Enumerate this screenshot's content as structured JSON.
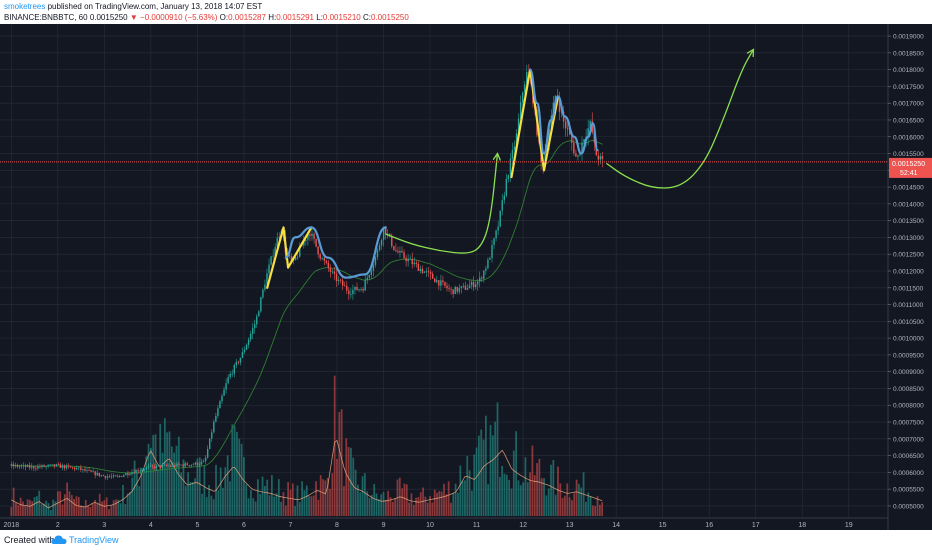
{
  "header": {
    "author": "smoketrees",
    "published_text": "published on TradingView.com, January 13, 2018 14:07 EST",
    "symbol_line": "BINANCE:BNBBTC, 60",
    "last_value": "0.0015250",
    "change_text": "−0.0000910 (−5.63%)",
    "ohlc": [
      {
        "label": "O:",
        "value": "0.0015287"
      },
      {
        "label": "H:",
        "value": "0.0015291"
      },
      {
        "label": "L:",
        "value": "0.0015210"
      },
      {
        "label": "C:",
        "value": "0.0015250"
      }
    ]
  },
  "price_tag": {
    "price": "0.0015250",
    "countdown": "52:41"
  },
  "footer": {
    "created_with": "Created with",
    "brand": "TradingView"
  },
  "colors": {
    "background": "#131722",
    "grid": "#2a2e39",
    "candle_up": "#26a69a",
    "candle_down": "#ef5350",
    "projection": "#8be04e",
    "pattern_yellow": "#f5e042",
    "pattern_blue": "#5b9bd5",
    "price_line": "#ef5350",
    "volume_ma": "#e8a47c",
    "ema": "#2e7d32"
  },
  "chart_data": {
    "type": "candlestick",
    "symbol": "BINANCE:BNBBTC",
    "interval": "60",
    "x_tick_labels": [
      "2018",
      "2",
      "3",
      "4",
      "5",
      "6",
      "7",
      "8",
      "9",
      "10",
      "11",
      "12",
      "13",
      "14",
      "15",
      "16",
      "17",
      "18",
      "19"
    ],
    "y_tick_labels": [
      "0.0019000",
      "0.0018500",
      "0.0018000",
      "0.0017500",
      "0.0017000",
      "0.0016500",
      "0.0016000",
      "0.0015500",
      "0.0015000",
      "0.0014500",
      "0.0014000",
      "0.0013500",
      "0.0013000",
      "0.0012500",
      "0.0012000",
      "0.0011500",
      "0.0011000",
      "0.0010500",
      "0.0010000",
      "0.0009500",
      "0.0009000",
      "0.0008500",
      "0.0008000",
      "0.0007500",
      "0.0007000",
      "0.0006500",
      "0.0006000",
      "0.0005500",
      "0.0005000"
    ],
    "ylim": [
      0.00047,
      0.00193
    ],
    "xlim": [
      0.8,
      19.8
    ],
    "last_price": 0.001525,
    "price_path": [
      [
        1.0,
        0.00062
      ],
      [
        1.5,
        0.000615
      ],
      [
        2.0,
        0.00062
      ],
      [
        2.5,
        0.00061
      ],
      [
        3.0,
        0.00059
      ],
      [
        3.3,
        0.000585
      ],
      [
        3.6,
        0.0006
      ],
      [
        4.0,
        0.000615
      ],
      [
        4.5,
        0.00062
      ],
      [
        5.0,
        0.000625
      ],
      [
        5.2,
        0.00063
      ],
      [
        5.4,
        0.00075
      ],
      [
        5.7,
        0.00088
      ],
      [
        6.0,
        0.00095
      ],
      [
        6.3,
        0.00105
      ],
      [
        6.5,
        0.00117
      ],
      [
        6.7,
        0.00127
      ],
      [
        6.85,
        0.00133
      ],
      [
        6.95,
        0.00125
      ],
      [
        7.1,
        0.00122
      ],
      [
        7.3,
        0.00128
      ],
      [
        7.45,
        0.00132
      ],
      [
        7.7,
        0.00124
      ],
      [
        8.0,
        0.00118
      ],
      [
        8.3,
        0.00114
      ],
      [
        8.6,
        0.00115
      ],
      [
        8.9,
        0.00125
      ],
      [
        9.05,
        0.00133
      ],
      [
        9.3,
        0.00126
      ],
      [
        9.6,
        0.00123
      ],
      [
        9.9,
        0.0012
      ],
      [
        10.2,
        0.00117
      ],
      [
        10.5,
        0.00114
      ],
      [
        10.8,
        0.00115
      ],
      [
        11.1,
        0.00117
      ],
      [
        11.3,
        0.00123
      ],
      [
        11.5,
        0.00133
      ],
      [
        11.7,
        0.00148
      ],
      [
        11.9,
        0.0016
      ],
      [
        12.05,
        0.00175
      ],
      [
        12.15,
        0.0018
      ],
      [
        12.25,
        0.00172
      ],
      [
        12.45,
        0.0015
      ],
      [
        12.6,
        0.00162
      ],
      [
        12.75,
        0.00173
      ],
      [
        12.9,
        0.00165
      ],
      [
        13.05,
        0.0016
      ],
      [
        13.2,
        0.00153
      ],
      [
        13.35,
        0.0016
      ],
      [
        13.5,
        0.00164
      ],
      [
        13.6,
        0.00155
      ],
      [
        13.75,
        0.001525
      ]
    ],
    "volume_ratios": [
      0.2,
      0.14,
      0.12,
      0.18,
      0.1,
      0.16,
      0.22,
      0.13,
      0.11,
      0.17,
      0.12,
      0.14,
      0.2,
      0.3,
      0.5,
      0.82,
      0.6,
      0.72,
      0.52,
      0.38,
      0.42,
      0.35,
      0.3,
      0.48,
      0.62,
      0.45,
      0.33,
      0.3,
      0.28,
      0.24,
      0.22,
      0.2,
      0.25,
      0.32,
      0.27,
      1.0,
      0.55,
      0.35,
      0.3,
      0.22,
      0.18,
      0.2,
      0.24,
      0.19,
      0.17,
      0.2,
      0.22,
      0.25,
      0.3,
      0.5,
      0.45,
      0.62,
      0.7,
      0.82,
      0.58,
      0.5,
      0.44,
      0.42,
      0.38,
      0.32,
      0.28,
      0.3,
      0.26,
      0.22,
      0.18
    ],
    "pattern_paths": [
      {
        "color": "yellow",
        "points": [
          [
            6.5,
            0.00115
          ],
          [
            6.85,
            0.00133
          ],
          [
            6.95,
            0.00121
          ],
          [
            7.45,
            0.00133
          ]
        ]
      },
      {
        "color": "blue",
        "points": [
          [
            6.9,
            0.00124
          ],
          [
            7.1,
            0.0013
          ],
          [
            7.45,
            0.00133
          ],
          [
            7.8,
            0.00124
          ],
          [
            8.2,
            0.00118
          ],
          [
            8.6,
            0.00119
          ],
          [
            9.05,
            0.00133
          ]
        ]
      },
      {
        "color": "yellow",
        "points": [
          [
            11.75,
            0.00148
          ],
          [
            12.15,
            0.0018
          ],
          [
            12.45,
            0.0015
          ],
          [
            12.75,
            0.00172
          ]
        ]
      },
      {
        "color": "blue",
        "points": [
          [
            12.15,
            0.0018
          ],
          [
            12.3,
            0.0017
          ],
          [
            12.45,
            0.00155
          ],
          [
            12.6,
            0.00165
          ],
          [
            12.75,
            0.00172
          ],
          [
            12.9,
            0.00166
          ],
          [
            13.1,
            0.0016
          ],
          [
            13.25,
            0.00155
          ],
          [
            13.4,
            0.0016
          ],
          [
            13.5,
            0.00164
          ],
          [
            13.6,
            0.00156
          ]
        ]
      }
    ],
    "projection_paths": [
      {
        "points": [
          [
            9.05,
            0.00131
          ],
          [
            9.6,
            0.00128
          ],
          [
            10.2,
            0.00126
          ],
          [
            10.8,
            0.00125
          ],
          [
            11.1,
            0.00127
          ],
          [
            11.3,
            0.00135
          ],
          [
            11.45,
            0.00155
          ]
        ],
        "arrow": true
      },
      {
        "points": [
          [
            13.8,
            0.00152
          ],
          [
            14.2,
            0.00148
          ],
          [
            14.8,
            0.001445
          ],
          [
            15.4,
            0.00145
          ],
          [
            15.9,
            0.00152
          ],
          [
            16.3,
            0.00165
          ],
          [
            16.7,
            0.0018
          ],
          [
            16.95,
            0.00186
          ]
        ],
        "arrow": true
      }
    ]
  }
}
